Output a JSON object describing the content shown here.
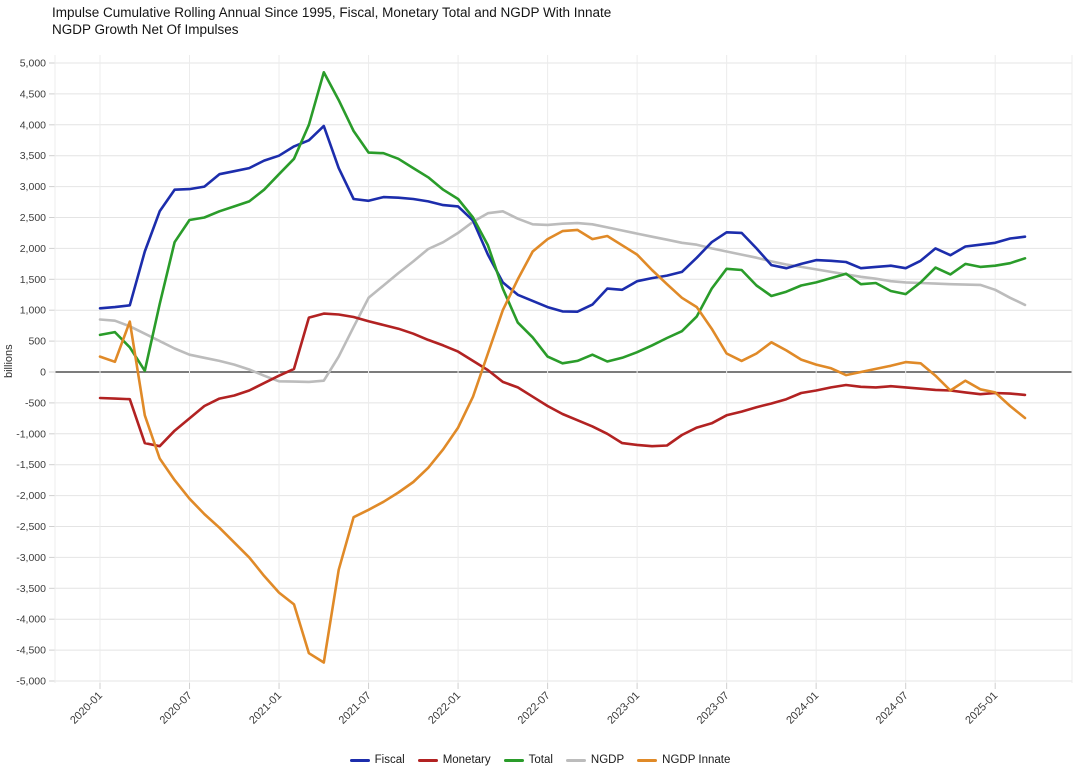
{
  "title": "Impulse Cumulative Rolling Annual Since 1995, Fiscal, Monetary Total and NGDP With Innate NGDP Growth Net Of Impulses",
  "chart_data": {
    "type": "line",
    "title": "Impulse Cumulative Rolling Annual Since 1995, Fiscal, Monetary Total and NGDP With Innate NGDP Growth Net Of Impulses",
    "xlabel": "",
    "ylabel": "billions",
    "ylim": [
      -5000,
      5000
    ],
    "y_tick_step": 500,
    "grid": true,
    "legend_position": "bottom",
    "x_ticks": [
      "2020-01",
      "2020-07",
      "2021-01",
      "2021-07",
      "2022-01",
      "2022-07",
      "2023-01",
      "2023-07",
      "2024-01",
      "2024-07",
      "2025-01"
    ],
    "x": [
      "2020-01",
      "2020-02",
      "2020-03",
      "2020-04",
      "2020-05",
      "2020-06",
      "2020-07",
      "2020-08",
      "2020-09",
      "2020-10",
      "2020-11",
      "2020-12",
      "2021-01",
      "2021-02",
      "2021-03",
      "2021-04",
      "2021-05",
      "2021-06",
      "2021-07",
      "2021-08",
      "2021-09",
      "2021-10",
      "2021-11",
      "2021-12",
      "2022-01",
      "2022-02",
      "2022-03",
      "2022-04",
      "2022-05",
      "2022-06",
      "2022-07",
      "2022-08",
      "2022-09",
      "2022-10",
      "2022-11",
      "2022-12",
      "2023-01",
      "2023-02",
      "2023-03",
      "2023-04",
      "2023-05",
      "2023-06",
      "2023-07",
      "2023-08",
      "2023-09",
      "2023-10",
      "2023-11",
      "2023-12",
      "2024-01",
      "2024-02",
      "2024-03",
      "2024-04",
      "2024-05",
      "2024-06",
      "2024-07",
      "2024-08",
      "2024-09",
      "2024-10",
      "2024-11",
      "2024-12",
      "2025-01",
      "2025-02",
      "2025-03"
    ],
    "series": [
      {
        "name": "Fiscal",
        "color": "#1c2dac",
        "values": [
          1030,
          1050,
          1080,
          1950,
          2600,
          2950,
          2960,
          3000,
          3200,
          3250,
          3300,
          3420,
          3500,
          3650,
          3750,
          3980,
          3300,
          2800,
          2770,
          2830,
          2820,
          2800,
          2760,
          2700,
          2680,
          2450,
          1900,
          1450,
          1250,
          1150,
          1050,
          980,
          975,
          1090,
          1350,
          1330,
          1470,
          1520,
          1560,
          1620,
          1850,
          2100,
          2260,
          2250,
          2000,
          1730,
          1680,
          1750,
          1810,
          1800,
          1780,
          1680,
          1700,
          1720,
          1680,
          1800,
          2000,
          1890,
          2030,
          2060,
          2090,
          2160,
          2190
        ]
      },
      {
        "name": "Monetary",
        "color": "#b22222",
        "values": [
          -420,
          -430,
          -440,
          -1150,
          -1200,
          -950,
          -750,
          -550,
          -430,
          -380,
          -300,
          -180,
          -60,
          50,
          880,
          945,
          930,
          890,
          820,
          760,
          700,
          620,
          520,
          430,
          330,
          180,
          30,
          -160,
          -250,
          -400,
          -550,
          -680,
          -780,
          -880,
          -1000,
          -1150,
          -1180,
          -1200,
          -1190,
          -1020,
          -900,
          -830,
          -700,
          -640,
          -570,
          -510,
          -440,
          -340,
          -300,
          -250,
          -210,
          -240,
          -250,
          -230,
          -250,
          -270,
          -290,
          -300,
          -330,
          -360,
          -340,
          -350,
          -370
        ]
      },
      {
        "name": "Total",
        "color": "#2a9c2a",
        "values": [
          600,
          645,
          400,
          20,
          1100,
          2100,
          2460,
          2500,
          2600,
          2680,
          2760,
          2950,
          3200,
          3450,
          4000,
          4850,
          4400,
          3900,
          3550,
          3540,
          3450,
          3300,
          3150,
          2950,
          2800,
          2500,
          2050,
          1350,
          800,
          560,
          250,
          140,
          180,
          280,
          170,
          230,
          320,
          430,
          550,
          660,
          900,
          1350,
          1670,
          1650,
          1400,
          1230,
          1300,
          1400,
          1450,
          1520,
          1590,
          1420,
          1440,
          1310,
          1260,
          1450,
          1690,
          1580,
          1750,
          1700,
          1720,
          1760,
          1840
        ]
      },
      {
        "name": "NGDP",
        "color": "#bcbcbc",
        "values": [
          850,
          830,
          740,
          620,
          500,
          380,
          280,
          230,
          180,
          120,
          40,
          -60,
          -150,
          -155,
          -160,
          -140,
          250,
          730,
          1200,
          1400,
          1600,
          1790,
          1990,
          2100,
          2250,
          2430,
          2570,
          2600,
          2480,
          2390,
          2380,
          2400,
          2410,
          2390,
          2340,
          2290,
          2240,
          2190,
          2140,
          2090,
          2060,
          2000,
          1950,
          1900,
          1850,
          1790,
          1740,
          1700,
          1660,
          1620,
          1580,
          1540,
          1510,
          1470,
          1450,
          1440,
          1430,
          1420,
          1415,
          1410,
          1330,
          1200,
          1085
        ]
      },
      {
        "name": "NGDP Innate",
        "color": "#e08a28",
        "values": [
          250,
          165,
          815,
          -700,
          -1400,
          -1750,
          -2050,
          -2300,
          -2520,
          -2760,
          -3000,
          -3300,
          -3570,
          -3760,
          -4550,
          -4700,
          -3200,
          -2350,
          -2230,
          -2100,
          -1950,
          -1780,
          -1550,
          -1250,
          -900,
          -400,
          300,
          1000,
          1500,
          1950,
          2150,
          2280,
          2300,
          2150,
          2200,
          2050,
          1900,
          1650,
          1420,
          1200,
          1050,
          700,
          300,
          180,
          300,
          480,
          350,
          200,
          120,
          60,
          -50,
          0,
          50,
          100,
          160,
          140,
          -60,
          -300,
          -140,
          -280,
          -330,
          -550,
          -745
        ]
      }
    ]
  }
}
